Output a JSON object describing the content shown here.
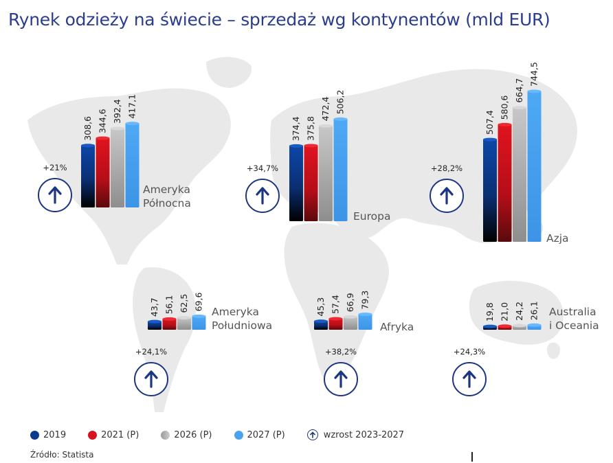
{
  "title": "Rynek odzieży na świecie – sprzedaż wg kontynentów (mld EUR)",
  "chart_data": {
    "type": "bar",
    "title": "Rynek odzieży na świecie – sprzedaż wg kontynentów (mld EUR)",
    "unit": "mld EUR",
    "series_names": [
      "2019",
      "2021 (P)",
      "2026 (P)",
      "2027 (P)"
    ],
    "colors": [
      "#0d3a8c",
      "#d6121f",
      "#b8b8b8",
      "#4aa3f0"
    ],
    "scale_max": 744.5,
    "regions": [
      {
        "name": "Ameryka Północna",
        "name_lines": [
          "Ameryka",
          "Północna"
        ],
        "values": [
          308.6,
          344.6,
          392.4,
          417.1
        ],
        "value_labels": [
          "308,6",
          "344,6",
          "392,4",
          "417,1"
        ],
        "growth": "+21%"
      },
      {
        "name": "Europa",
        "name_lines": [
          "Europa"
        ],
        "values": [
          374.4,
          375.8,
          472.4,
          506.2
        ],
        "value_labels": [
          "374,4",
          "375,8",
          "472,4",
          "506,2"
        ],
        "growth": "+34,7%"
      },
      {
        "name": "Azja",
        "name_lines": [
          "Azja"
        ],
        "values": [
          507.4,
          580.6,
          664.7,
          744.5
        ],
        "value_labels": [
          "507,4",
          "580,6",
          "664,7",
          "744,5"
        ],
        "growth": "+28,2%"
      },
      {
        "name": "Ameryka Południowa",
        "name_lines": [
          "Ameryka",
          "Południowa"
        ],
        "values": [
          43.7,
          56.1,
          62.5,
          69.6
        ],
        "value_labels": [
          "43,7",
          "56,1",
          "62,5",
          "69,6"
        ],
        "growth": "+24,1%"
      },
      {
        "name": "Afryka",
        "name_lines": [
          "Afryka"
        ],
        "values": [
          45.3,
          57.4,
          66.9,
          79.3
        ],
        "value_labels": [
          "45,3",
          "57,4",
          "66,9",
          "79,3"
        ],
        "growth": "+38,2%"
      },
      {
        "name": "Australia i Oceania",
        "name_lines": [
          "Australia",
          "i Oceania"
        ],
        "values": [
          19.8,
          21.0,
          24.2,
          26.1
        ],
        "value_labels": [
          "19,8",
          "21,0",
          "24,2",
          "26,1"
        ],
        "growth": "+24,3%"
      }
    ]
  },
  "legend": {
    "items": [
      {
        "label": "2019",
        "color": "#0d3a8c"
      },
      {
        "label": "2021 (P)",
        "color": "#d6121f"
      },
      {
        "label": "2026 (P)",
        "color": "#b8b8b8"
      },
      {
        "label": "2027 (P)",
        "color": "#4aa3f0"
      }
    ],
    "growth_label": "wzrost 2023-2027"
  },
  "source": "Źródło: Statista"
}
